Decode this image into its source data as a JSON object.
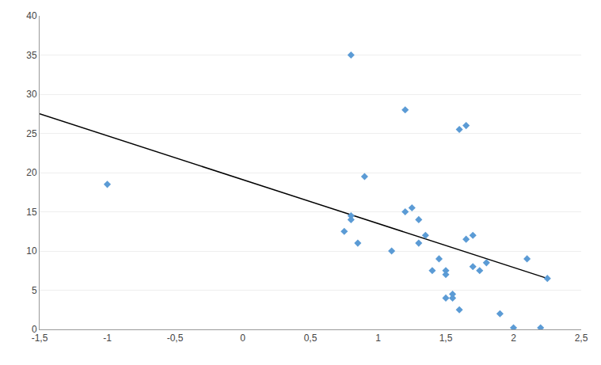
{
  "chart_data": {
    "type": "scatter",
    "series": [
      {
        "type": "scatter",
        "color": "#5B9BD5",
        "marker": "diamond",
        "x": [
          -1.0,
          0.8,
          0.8,
          0.8,
          0.75,
          0.85,
          0.9,
          1.1,
          1.2,
          1.2,
          1.25,
          1.3,
          1.3,
          1.35,
          1.4,
          1.45,
          1.5,
          1.5,
          1.5,
          1.55,
          1.55,
          1.6,
          1.6,
          1.65,
          1.65,
          1.7,
          1.7,
          1.75,
          1.8,
          1.9,
          2.0,
          2.1,
          2.2,
          2.25
        ],
        "values": [
          18.5,
          35.0,
          14.0,
          14.5,
          12.5,
          11.0,
          19.5,
          10.0,
          28.0,
          15.0,
          15.5,
          14.0,
          11.0,
          12.0,
          7.5,
          9.0,
          7.0,
          7.5,
          4.0,
          4.5,
          4.0,
          2.5,
          25.5,
          26.0,
          11.5,
          8.0,
          12.0,
          7.5,
          8.5,
          2.0,
          0.2,
          9.0,
          0.2,
          6.5
        ]
      },
      {
        "type": "line",
        "color": "#000000",
        "line_style": "solid",
        "x": [
          -1.5,
          2.25
        ],
        "values": [
          27.5,
          6.5
        ]
      }
    ],
    "xlim": [
      -1.5,
      2.5
    ],
    "ylim": [
      0,
      40
    ],
    "xticks": [
      {
        "value": -1.5,
        "label": "-1,5"
      },
      -1,
      {
        "value": -0.5,
        "label": "-0,5"
      },
      0,
      {
        "value": 0.5,
        "label": "0,5"
      },
      1,
      {
        "value": 1.5,
        "label": "1,5"
      },
      2,
      {
        "value": 2.5,
        "label": "2,5"
      }
    ],
    "yticks": [
      0,
      5,
      10,
      15,
      20,
      25,
      30,
      35,
      40
    ],
    "grid": "y"
  }
}
